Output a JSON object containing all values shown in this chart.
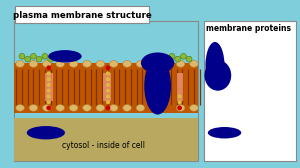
{
  "bg_color": "#7ecfdb",
  "left_panel_bg": "#7ecfdb",
  "right_panel_bg": "#ffffff",
  "title_text": "plasma membrane structure",
  "title_box_color": "#ffffff",
  "title_text_color": "#000000",
  "cytosol_text": "cytosol - inside of cell",
  "cytosol_text_color": "#000000",
  "membrane_proteins_text": "membrane proteins",
  "membrane_proteins_text_color": "#000000",
  "phospholipid_head_color": "#ddb86a",
  "phospholipid_tail_color": "#c05500",
  "dark_blue_protein_color": "#00008b",
  "green_chain_color": "#88bb33",
  "red_dot_color": "#cc0000",
  "yellow_dot_color": "#ddb840",
  "salmon_rect_color": "#e89070",
  "bottom_bg_color": "#b8a860",
  "left_panel_border": "#888888",
  "right_panel_border": "#888888"
}
